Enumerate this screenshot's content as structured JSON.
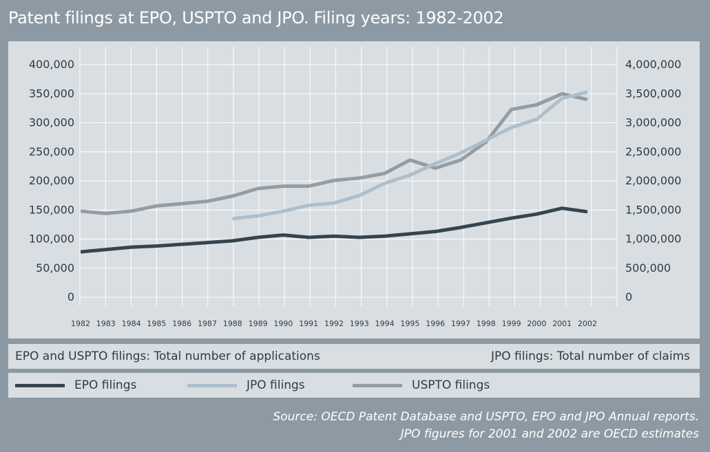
{
  "title": "Patent filings at EPO, USPTO and JPO. Filing years: 1982-2002",
  "notes": {
    "left": "EPO and USPTO filings: Total number of applications",
    "right": "JPO filings: Total number of claims"
  },
  "source": {
    "line1": "Source: OECD Patent Database and USPTO, EPO and JPO Annual reports.",
    "line2": "JPO figures for 2001 and 2002 are OECD estimates"
  },
  "legend": [
    {
      "label": "EPO filings",
      "color": "#36444e"
    },
    {
      "label": "JPO filings",
      "color": "#adbfcc"
    },
    {
      "label": "USPTO filings",
      "color": "#949da4"
    }
  ],
  "chart_data": {
    "type": "line",
    "x": [
      1982,
      1983,
      1984,
      1985,
      1986,
      1987,
      1988,
      1989,
      1990,
      1991,
      1992,
      1993,
      1994,
      1995,
      1996,
      1997,
      1998,
      1999,
      2000,
      2001,
      2002
    ],
    "x_tick_labels": [
      "1982",
      "1983",
      "1984",
      "1985",
      "1986",
      "1987",
      "1988",
      "1989",
      "1990",
      "1991",
      "1992",
      "1993",
      "1994",
      "1995",
      "1996",
      "1997",
      "1998",
      "1999",
      "2000",
      "2001",
      "2002"
    ],
    "y_left": {
      "range": [
        0,
        400000
      ],
      "tick_labels": [
        "0",
        "50,000",
        "100,000",
        "150,000",
        "200,000",
        "250,000",
        "300,000",
        "350,000",
        "400,000"
      ]
    },
    "y_right": {
      "range": [
        0,
        4000000
      ],
      "tick_labels": [
        "0",
        "500,000",
        "1,000,000",
        "1,500,000",
        "2,000,000",
        "2,500,000",
        "3,000,000",
        "3,500,000",
        "4,000,000"
      ]
    },
    "grid": true,
    "series": [
      {
        "name": "EPO filings",
        "axis": "left",
        "color": "#36444e",
        "values": [
          78000,
          82000,
          86000,
          88000,
          91000,
          94000,
          97000,
          103000,
          107000,
          103000,
          105000,
          103000,
          105000,
          109000,
          113000,
          120000,
          128000,
          136000,
          143000,
          153000,
          147000
        ]
      },
      {
        "name": "JPO filings",
        "axis": "right",
        "color": "#adbfcc",
        "values": [
          null,
          null,
          null,
          null,
          null,
          null,
          1350000,
          1400000,
          1480000,
          1580000,
          1620000,
          1750000,
          1960000,
          2100000,
          2300000,
          2480000,
          2700000,
          2920000,
          3060000,
          3420000,
          3530000
        ]
      },
      {
        "name": "USPTO filings",
        "axis": "left",
        "color": "#949da4",
        "values": [
          148000,
          144000,
          148000,
          157000,
          161000,
          165000,
          174000,
          187000,
          191000,
          191000,
          201000,
          205000,
          213000,
          236000,
          222000,
          236000,
          267000,
          323000,
          331000,
          350000,
          340000
        ]
      }
    ]
  }
}
